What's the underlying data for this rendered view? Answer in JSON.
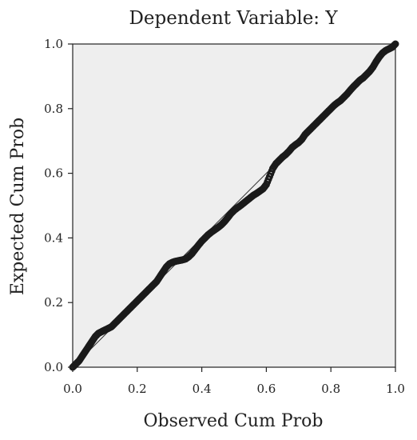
{
  "chart_data": {
    "type": "scatter",
    "title": "Dependent Variable: Y",
    "xlabel": "Observed Cum Prob",
    "ylabel": "Expected Cum Prob",
    "xlim": [
      0.0,
      1.0
    ],
    "ylim": [
      0.0,
      1.0
    ],
    "xticks": [
      "0.0",
      "0.2",
      "0.4",
      "0.6",
      "0.8",
      "1.0"
    ],
    "yticks": [
      "0.0",
      "0.2",
      "0.4",
      "0.6",
      "0.8",
      "1.0"
    ],
    "reference_line": [
      [
        0.0,
        0.0
      ],
      [
        1.0,
        1.0
      ]
    ],
    "grid": false,
    "plot_background": "#eeeeee",
    "point_color": "#1a1a1a",
    "series": [
      {
        "points": [
          [
            0.0,
            0.0
          ],
          [
            0.01,
            0.01
          ],
          [
            0.02,
            0.02
          ],
          [
            0.03,
            0.035
          ],
          [
            0.04,
            0.05
          ],
          [
            0.05,
            0.065
          ],
          [
            0.06,
            0.08
          ],
          [
            0.07,
            0.095
          ],
          [
            0.08,
            0.105
          ],
          [
            0.09,
            0.11
          ],
          [
            0.1,
            0.115
          ],
          [
            0.11,
            0.12
          ],
          [
            0.12,
            0.125
          ],
          [
            0.13,
            0.135
          ],
          [
            0.14,
            0.145
          ],
          [
            0.15,
            0.155
          ],
          [
            0.16,
            0.165
          ],
          [
            0.17,
            0.175
          ],
          [
            0.18,
            0.185
          ],
          [
            0.19,
            0.195
          ],
          [
            0.2,
            0.205
          ],
          [
            0.21,
            0.215
          ],
          [
            0.22,
            0.225
          ],
          [
            0.23,
            0.235
          ],
          [
            0.24,
            0.245
          ],
          [
            0.25,
            0.255
          ],
          [
            0.26,
            0.265
          ],
          [
            0.27,
            0.28
          ],
          [
            0.28,
            0.295
          ],
          [
            0.29,
            0.31
          ],
          [
            0.3,
            0.32
          ],
          [
            0.31,
            0.325
          ],
          [
            0.32,
            0.328
          ],
          [
            0.33,
            0.33
          ],
          [
            0.34,
            0.332
          ],
          [
            0.35,
            0.335
          ],
          [
            0.36,
            0.342
          ],
          [
            0.37,
            0.352
          ],
          [
            0.38,
            0.365
          ],
          [
            0.39,
            0.378
          ],
          [
            0.4,
            0.39
          ],
          [
            0.41,
            0.4
          ],
          [
            0.42,
            0.41
          ],
          [
            0.43,
            0.418
          ],
          [
            0.44,
            0.425
          ],
          [
            0.45,
            0.432
          ],
          [
            0.46,
            0.44
          ],
          [
            0.47,
            0.45
          ],
          [
            0.48,
            0.462
          ],
          [
            0.49,
            0.475
          ],
          [
            0.5,
            0.485
          ],
          [
            0.51,
            0.493
          ],
          [
            0.52,
            0.5
          ],
          [
            0.53,
            0.508
          ],
          [
            0.54,
            0.516
          ],
          [
            0.55,
            0.524
          ],
          [
            0.56,
            0.532
          ],
          [
            0.57,
            0.538
          ],
          [
            0.58,
            0.545
          ],
          [
            0.59,
            0.552
          ],
          [
            0.6,
            0.565
          ],
          [
            0.61,
            0.59
          ],
          [
            0.62,
            0.615
          ],
          [
            0.63,
            0.63
          ],
          [
            0.64,
            0.64
          ],
          [
            0.65,
            0.65
          ],
          [
            0.66,
            0.658
          ],
          [
            0.67,
            0.668
          ],
          [
            0.68,
            0.68
          ],
          [
            0.69,
            0.688
          ],
          [
            0.7,
            0.695
          ],
          [
            0.71,
            0.705
          ],
          [
            0.72,
            0.72
          ],
          [
            0.73,
            0.73
          ],
          [
            0.74,
            0.74
          ],
          [
            0.75,
            0.75
          ],
          [
            0.76,
            0.76
          ],
          [
            0.77,
            0.77
          ],
          [
            0.78,
            0.78
          ],
          [
            0.79,
            0.79
          ],
          [
            0.8,
            0.8
          ],
          [
            0.81,
            0.81
          ],
          [
            0.82,
            0.818
          ],
          [
            0.83,
            0.825
          ],
          [
            0.84,
            0.835
          ],
          [
            0.85,
            0.845
          ],
          [
            0.86,
            0.857
          ],
          [
            0.87,
            0.868
          ],
          [
            0.88,
            0.878
          ],
          [
            0.89,
            0.888
          ],
          [
            0.9,
            0.895
          ],
          [
            0.91,
            0.905
          ],
          [
            0.92,
            0.915
          ],
          [
            0.93,
            0.928
          ],
          [
            0.94,
            0.945
          ],
          [
            0.95,
            0.96
          ],
          [
            0.96,
            0.972
          ],
          [
            0.97,
            0.98
          ],
          [
            0.98,
            0.985
          ],
          [
            0.99,
            0.99
          ],
          [
            1.0,
            1.0
          ]
        ]
      }
    ]
  }
}
